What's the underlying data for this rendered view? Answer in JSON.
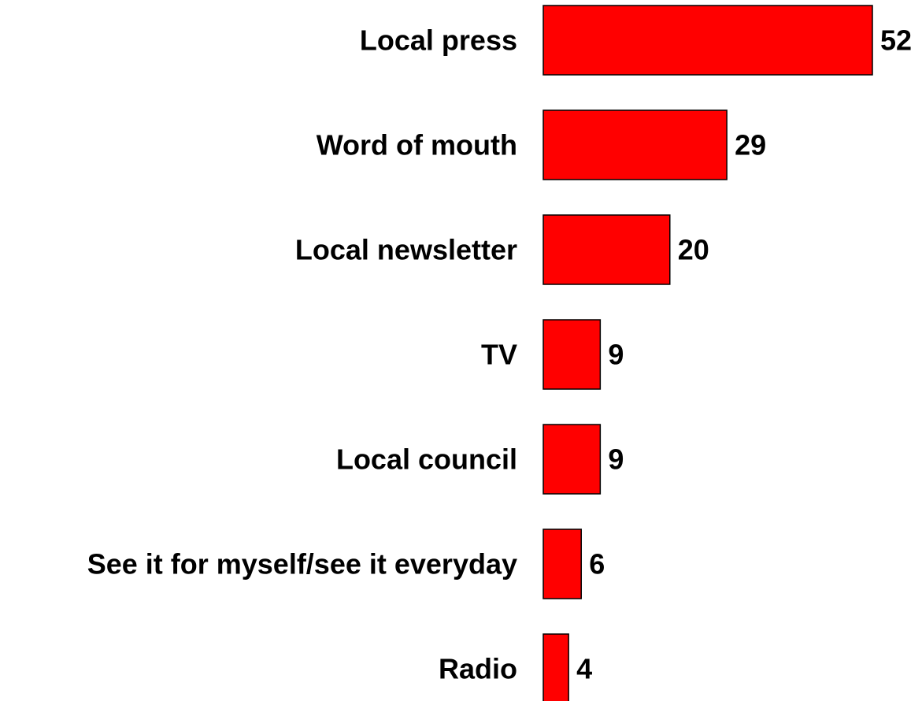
{
  "chart_data": {
    "type": "bar",
    "orientation": "horizontal",
    "categories": [
      "Local press",
      "Word of mouth",
      "Local newsletter",
      "TV",
      "Local council",
      "See it for myself/see it everyday",
      "Radio"
    ],
    "values": [
      52,
      29,
      20,
      9,
      9,
      6,
      4
    ],
    "value_labels": [
      "52",
      "29",
      "20",
      "9",
      "9",
      "6",
      "4"
    ],
    "bar_color": "#ff0000",
    "bar_outline_color": "#000000",
    "grid": false,
    "legend": "none",
    "xlim": [
      0,
      52
    ]
  }
}
